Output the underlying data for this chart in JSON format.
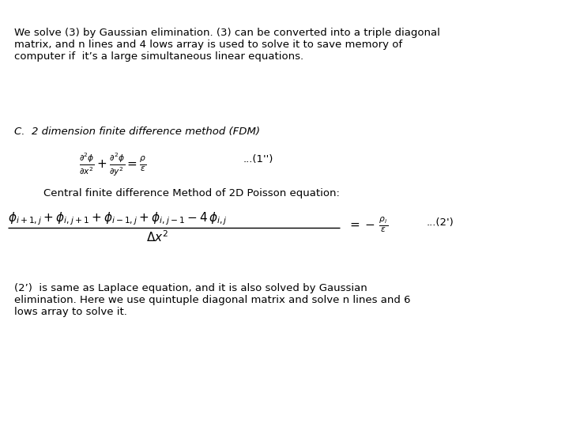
{
  "bg_color": "#ffffff",
  "text_color": "#000000",
  "figsize": [
    7.2,
    5.4
  ],
  "dpi": 100,
  "paragraph1_line1": "We solve (3) by Gaussian elimination. (3) can be converted into a triple diagonal",
  "paragraph1_line2": "matrix, and n lines and 4 lows array is used to solve it to save memory of",
  "paragraph1_line3": "computer if  it’s a large simultaneous linear equations.",
  "section_c": "C.  2 dimension finite difference method (FDM)",
  "central_text": "    Central finite difference Method of 2D Poisson equation:",
  "paragraph2_line1": "(2’)  is same as Laplace equation, and it is also solved by Gaussian",
  "paragraph2_line2": "elimination. Here we use quintuple diagonal matrix and solve n lines and 6",
  "paragraph2_line3": "lows array to solve it.",
  "text_fontsize": 9.5,
  "eq_fontsize": 11,
  "small_eq_fontsize": 9.5
}
